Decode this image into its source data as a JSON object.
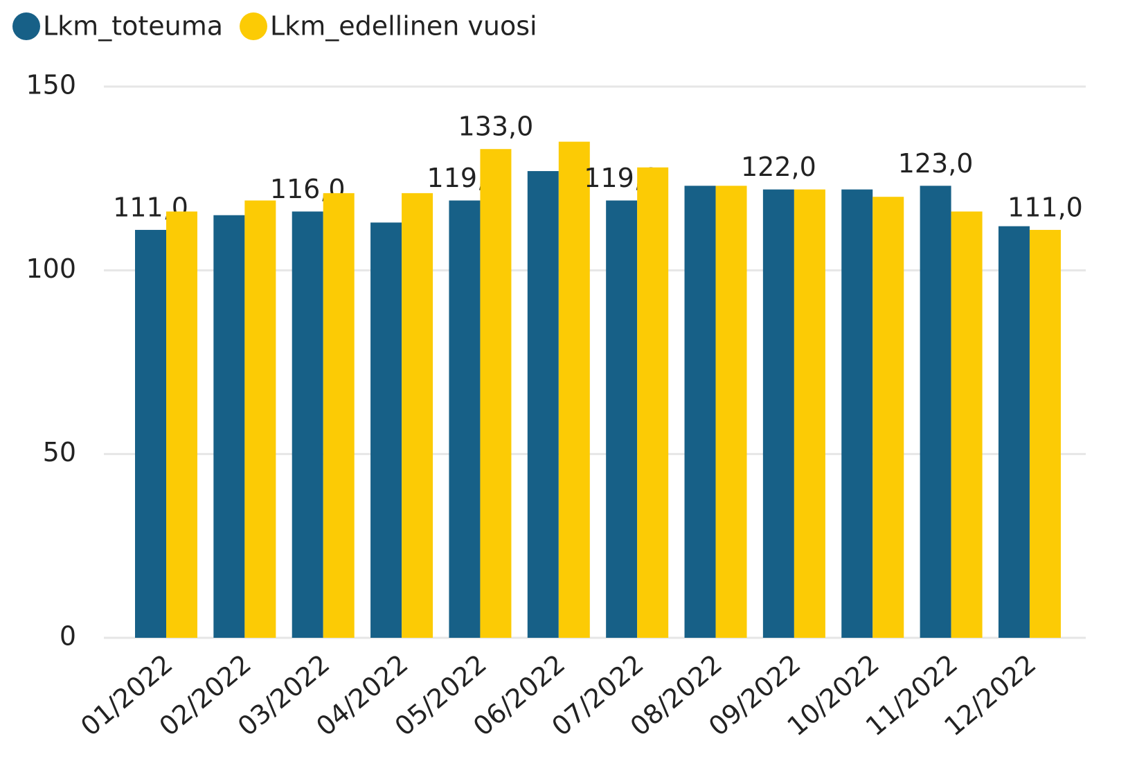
{
  "chart_data": {
    "type": "bar",
    "categories": [
      "01/2022",
      "02/2022",
      "03/2022",
      "04/2022",
      "05/2022",
      "06/2022",
      "07/2022",
      "08/2022",
      "09/2022",
      "10/2022",
      "11/2022",
      "12/2022"
    ],
    "series": [
      {
        "name": "Lkm_toteuma",
        "color": "#176087",
        "values": [
          111,
          115,
          116,
          113,
          119,
          127,
          119,
          123,
          122,
          122,
          123,
          112
        ],
        "value_labels": [
          "111,0",
          null,
          "116,0",
          null,
          "119,0",
          null,
          "119,0",
          null,
          "122,0",
          null,
          "123,0",
          null
        ]
      },
      {
        "name": "Lkm_edellinen vuosi",
        "color": "#fccb05",
        "values": [
          116,
          119,
          121,
          121,
          133,
          135,
          128,
          123,
          122,
          120,
          116,
          111
        ],
        "value_labels": [
          null,
          null,
          null,
          null,
          "133,0",
          null,
          null,
          null,
          null,
          null,
          null,
          "111,0"
        ]
      }
    ],
    "ylim": [
      0,
      150
    ],
    "yticks": [
      0,
      50,
      100,
      150
    ],
    "grid": true,
    "legend": "top-left"
  }
}
